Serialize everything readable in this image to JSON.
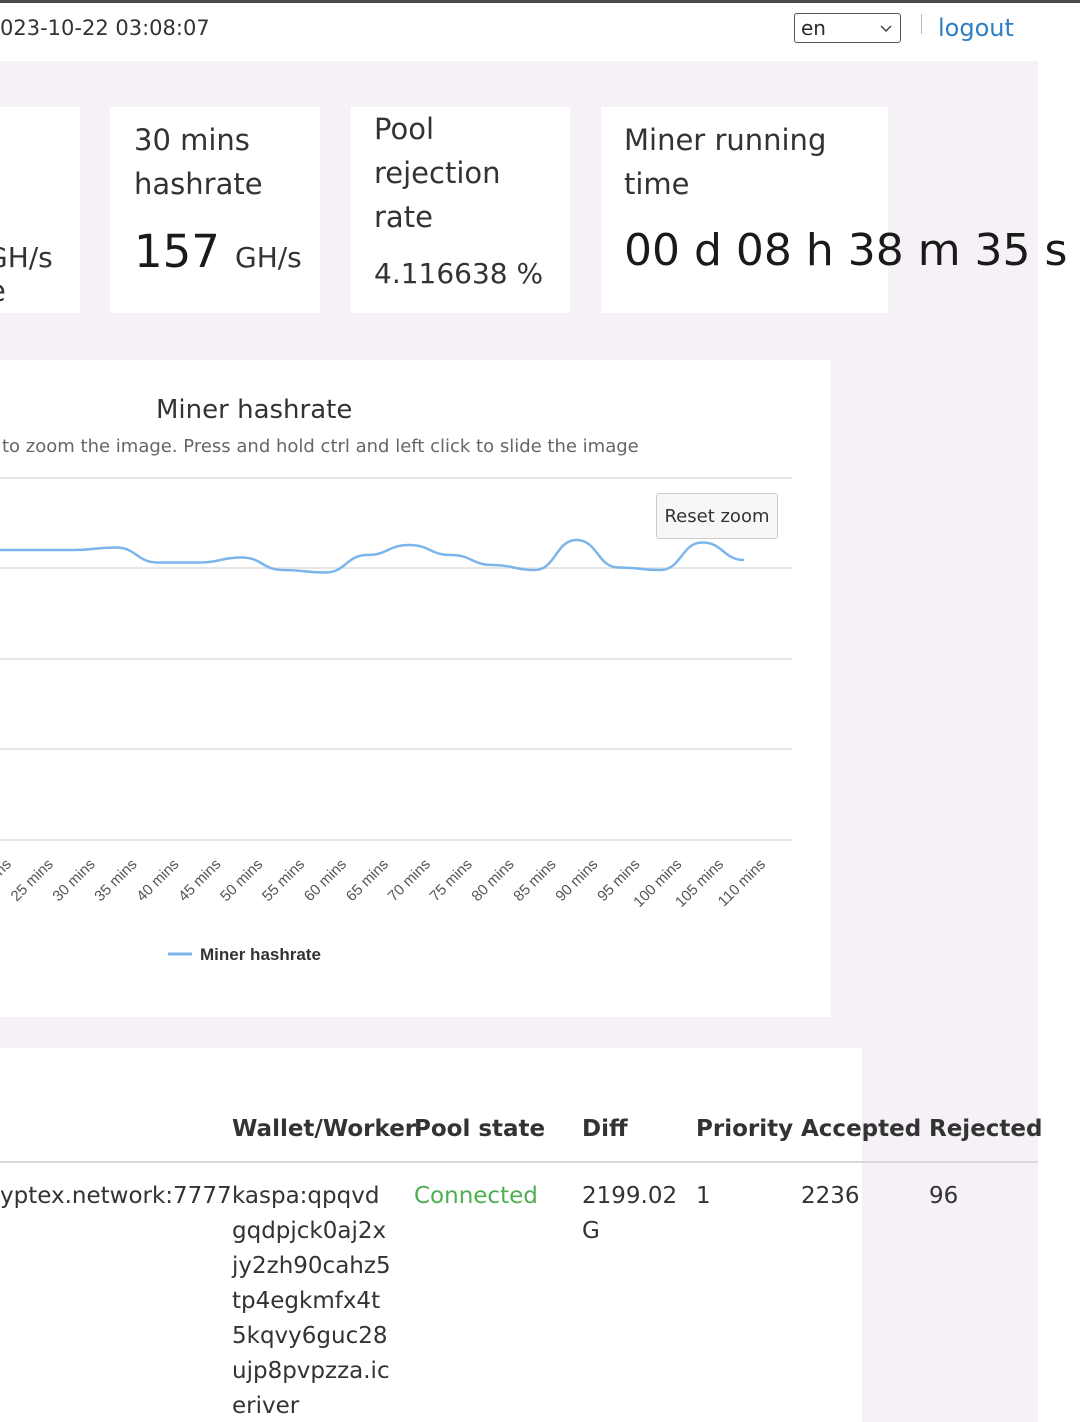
{
  "header": {
    "datetime": "023-10-22 03:08:07",
    "language": "en",
    "logout_label": "logout"
  },
  "cards": {
    "card1": {
      "label_fragment": "e",
      "unit_fragment": "GH/s"
    },
    "card2": {
      "label": "30 mins hashrate",
      "value": "157",
      "unit": "GH/s"
    },
    "card3": {
      "label": "Pool rejection rate",
      "value": "4.116638 %"
    },
    "card4": {
      "label": "Miner running time",
      "value": "00 d 08 h 38 m 35 s"
    }
  },
  "chart_data": {
    "type": "line",
    "title": "Miner hashrate",
    "subtitle": "to zoom the image. Press and hold ctrl and left click to slide the image",
    "reset_zoom_label": "Reset zoom",
    "categories": [
      "ins",
      "25 mins",
      "30 mins",
      "35 mins",
      "40 mins",
      "45 mins",
      "50 mins",
      "55 mins",
      "60 mins",
      "65 mins",
      "70 mins",
      "75 mins",
      "80 mins",
      "85 mins",
      "90 mins",
      "95 mins",
      "100 mins",
      "105 mins",
      "110 mins"
    ],
    "series": [
      {
        "name": "Miner hashrate",
        "color": "#7cb5ec",
        "values": [
          158,
          158,
          158,
          158.5,
          155.5,
          155.5,
          156.5,
          154,
          153.5,
          157,
          159,
          157,
          155,
          154,
          160,
          154.5,
          154,
          159.5,
          156
        ]
      }
    ],
    "legend": "bottom-center",
    "grid": true
  },
  "table": {
    "headers": {
      "wallet": "Wallet/Worker",
      "state": "Pool state",
      "diff": "Diff",
      "priority": "Priority",
      "accepted": "Accepted",
      "rejected": "Rejected"
    },
    "row": {
      "pool": "yptex.network:7777",
      "wallet": "kaspa:qpqvdgqdpjck0aj2xjy2zh90cahz5tp4egkmfx4t5kqvy6guc28ujp8pvpzza.iceriver",
      "state": "Connected",
      "diff": "2199.02G",
      "priority": "1",
      "accepted": "2236",
      "rejected": "96"
    }
  }
}
